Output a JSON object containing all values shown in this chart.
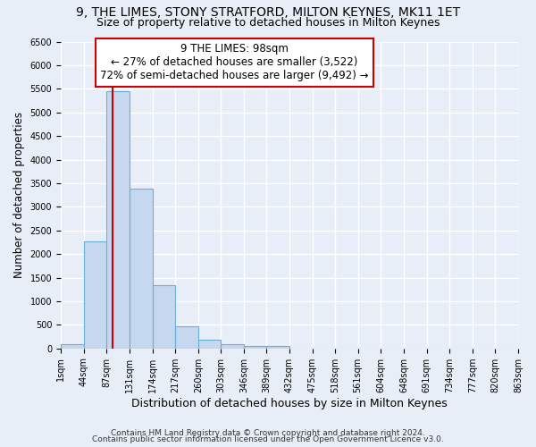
{
  "title": "9, THE LIMES, STONY STRATFORD, MILTON KEYNES, MK11 1ET",
  "subtitle": "Size of property relative to detached houses in Milton Keynes",
  "xlabel": "Distribution of detached houses by size in Milton Keynes",
  "ylabel": "Number of detached properties",
  "bin_edges": [
    1,
    44,
    87,
    131,
    174,
    217,
    260,
    303,
    346,
    389,
    432,
    475,
    518,
    561,
    604,
    648,
    691,
    734,
    777,
    820,
    863
  ],
  "bar_heights": [
    80,
    2270,
    5450,
    3380,
    1330,
    475,
    175,
    80,
    60,
    60,
    0,
    0,
    0,
    0,
    0,
    0,
    0,
    0,
    0,
    0
  ],
  "bar_color": "#c5d8ef",
  "bar_edge_color": "#6baed6",
  "vline_x": 98,
  "vline_color": "#cc0000",
  "annotation_text": "9 THE LIMES: 98sqm\n← 27% of detached houses are smaller (3,522)\n72% of semi-detached houses are larger (9,492) →",
  "annotation_box_color": "#ffffff",
  "annotation_box_edge_color": "#cc0000",
  "ylim": [
    0,
    6500
  ],
  "yticks": [
    0,
    500,
    1000,
    1500,
    2000,
    2500,
    3000,
    3500,
    4000,
    4500,
    5000,
    5500,
    6000,
    6500
  ],
  "bg_color": "#e8eef8",
  "grid_color": "#ffffff",
  "footer_line1": "Contains HM Land Registry data © Crown copyright and database right 2024.",
  "footer_line2": "Contains public sector information licensed under the Open Government Licence v3.0.",
  "title_fontsize": 10,
  "subtitle_fontsize": 9,
  "xlabel_fontsize": 9,
  "ylabel_fontsize": 8.5,
  "tick_fontsize": 7,
  "footer_fontsize": 6.5,
  "annotation_fontsize": 8.5
}
